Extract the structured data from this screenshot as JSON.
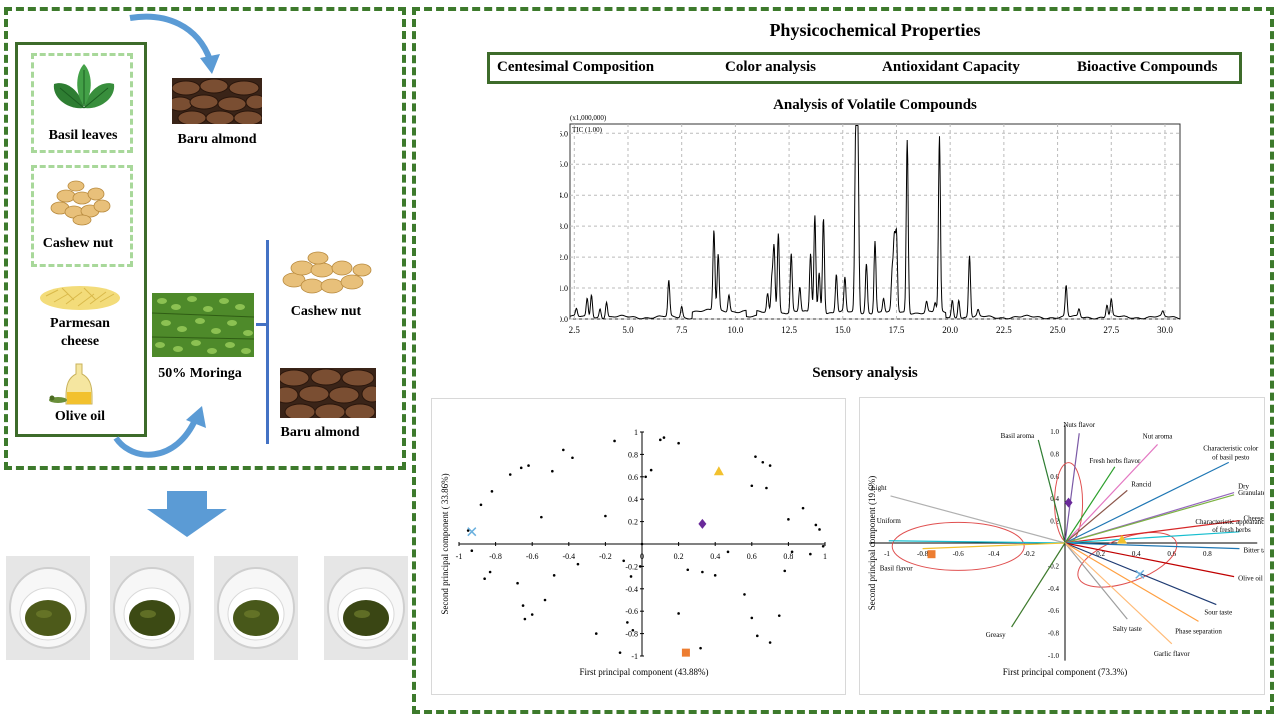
{
  "left": {
    "ingredients": {
      "basil": "Basil leaves",
      "cashew": "Cashew nut",
      "parmesan": "Parmesan cheese",
      "olive": "Olive oil"
    },
    "baru_top": "Baru almond",
    "moringa": "50% Moringa",
    "cashew_right": "Cashew nut",
    "baru_right": "Baru almond"
  },
  "right": {
    "title": "Physicochemical Properties",
    "properties": [
      "Centesimal Composition",
      "Color analysis",
      "Antioxidant Capacity",
      "Bioactive Compounds"
    ],
    "volatile_title": "Analysis of Volatile Compounds",
    "sensory_title": "Sensory analysis"
  },
  "colors": {
    "border_green": "#3d7a2c",
    "light_green": "#a8d89a",
    "arrow_blue": "#5b9bd5"
  },
  "chromatogram": {
    "scale_label": "(x1,000,000)",
    "trace_label": "TIC (1.00)",
    "y_ticks": [
      "0.0",
      "1.0",
      "2.0",
      "3.0",
      "4.0",
      "5.0",
      "6.0"
    ],
    "x_ticks": [
      "2.5",
      "5.0",
      "7.5",
      "10.0",
      "12.5",
      "15.0",
      "17.5",
      "20.0",
      "22.5",
      "25.0",
      "27.5",
      "30.0"
    ]
  },
  "chart_data": [
    {
      "type": "line",
      "title": "",
      "xlabel": "",
      "ylabel": "",
      "xlim": [
        2.3,
        30.7
      ],
      "ylim": [
        0,
        6.3
      ],
      "series": [
        {
          "peaks": [
            [
              2.6,
              0.25
            ],
            [
              3.1,
              0.6
            ],
            [
              3.3,
              0.75
            ],
            [
              3.7,
              0.3
            ],
            [
              4.0,
              0.5
            ],
            [
              6.9,
              1.15
            ],
            [
              7.5,
              0.35
            ],
            [
              9.0,
              2.6
            ],
            [
              9.2,
              1.8
            ],
            [
              9.7,
              0.55
            ],
            [
              11.5,
              0.6
            ],
            [
              11.7,
              1.1
            ],
            [
              11.8,
              2.15
            ],
            [
              12.0,
              2.6
            ],
            [
              12.6,
              1.9
            ],
            [
              13.0,
              0.8
            ],
            [
              13.5,
              1.9
            ],
            [
              13.7,
              3.15
            ],
            [
              13.9,
              1.3
            ],
            [
              14.1,
              3.1
            ],
            [
              14.7,
              1.25
            ],
            [
              15.1,
              1.1
            ],
            [
              15.6,
              5.6
            ],
            [
              15.7,
              5.85
            ],
            [
              16.1,
              1.6
            ],
            [
              16.5,
              2.35
            ],
            [
              16.9,
              0.45
            ],
            [
              17.3,
              1.25
            ],
            [
              17.4,
              2.25
            ],
            [
              17.5,
              2.45
            ],
            [
              18.0,
              5.6
            ],
            [
              18.9,
              0.35
            ],
            [
              19.3,
              0.3
            ],
            [
              19.5,
              5.65
            ],
            [
              20.1,
              0.55
            ],
            [
              20.4,
              0.6
            ],
            [
              20.9,
              2.0
            ],
            [
              21.3,
              0.2
            ],
            [
              25.4,
              1.0
            ],
            [
              26.0,
              0.25
            ],
            [
              27.3,
              0.4
            ],
            [
              27.5,
              0.55
            ],
            [
              29.9,
              0.15
            ]
          ]
        }
      ]
    },
    {
      "type": "scatter",
      "title": "",
      "xlabel": "First principal component  (43.88%)",
      "ylabel": "Second principal component  ( 33.86%)",
      "xlim": [
        -1,
        1
      ],
      "ylim": [
        -1,
        1
      ],
      "ticks": [
        "-1",
        "-0.8",
        "-0.6",
        "-0.4",
        "-0.2",
        "0",
        "0.2",
        "0.4",
        "0.6",
        "0.8",
        "1"
      ],
      "y_ticks": [
        "1",
        "0.8",
        "0.6",
        "0.4",
        "0.2",
        "0",
        "-0.2",
        "-0.4",
        "-0.6",
        "-0.8",
        "-1"
      ],
      "series": [
        {
          "marker": "dot",
          "color": "#000000",
          "points": [
            [
              -0.95,
              0.12
            ],
            [
              -0.88,
              0.35
            ],
            [
              -0.82,
              0.47
            ],
            [
              -0.72,
              0.62
            ],
            [
              -0.66,
              0.68
            ],
            [
              -0.62,
              0.7
            ],
            [
              -0.55,
              0.24
            ],
            [
              -0.49,
              0.65
            ],
            [
              -0.43,
              0.84
            ],
            [
              -0.38,
              0.77
            ],
            [
              -0.2,
              0.25
            ],
            [
              -0.15,
              0.92
            ],
            [
              0.02,
              0.6
            ],
            [
              0.05,
              0.66
            ],
            [
              0.1,
              0.93
            ],
            [
              0.12,
              0.95
            ],
            [
              0.2,
              0.9
            ],
            [
              0.62,
              0.78
            ],
            [
              0.66,
              0.73
            ],
            [
              0.7,
              0.7
            ],
            [
              0.68,
              0.5
            ],
            [
              0.6,
              0.52
            ],
            [
              0.8,
              0.22
            ],
            [
              0.88,
              0.32
            ],
            [
              0.95,
              0.17
            ],
            [
              0.97,
              0.13
            ],
            [
              0.99,
              -0.02
            ],
            [
              0.92,
              -0.09
            ],
            [
              0.82,
              -0.07
            ],
            [
              0.78,
              -0.24
            ],
            [
              0.75,
              -0.64
            ],
            [
              0.7,
              -0.88
            ],
            [
              0.63,
              -0.82
            ],
            [
              0.6,
              -0.66
            ],
            [
              0.56,
              -0.45
            ],
            [
              0.47,
              -0.07
            ],
            [
              0.4,
              -0.28
            ],
            [
              0.33,
              -0.25
            ],
            [
              0.25,
              -0.23
            ],
            [
              0.2,
              -0.62
            ],
            [
              0.32,
              -0.93
            ],
            [
              0.0,
              0.0
            ],
            [
              -0.01,
              -0.2
            ],
            [
              -0.06,
              -0.29
            ],
            [
              -0.1,
              -0.15
            ],
            [
              -0.05,
              -0.77
            ],
            [
              -0.08,
              -0.7
            ],
            [
              -0.12,
              -0.97
            ],
            [
              -0.25,
              -0.8
            ],
            [
              -0.35,
              -0.18
            ],
            [
              -0.48,
              -0.28
            ],
            [
              -0.53,
              -0.5
            ],
            [
              -0.6,
              -0.63
            ],
            [
              -0.64,
              -0.67
            ],
            [
              -0.65,
              -0.55
            ],
            [
              -0.68,
              -0.35
            ],
            [
              -0.83,
              -0.25
            ],
            [
              -0.86,
              -0.31
            ],
            [
              -0.93,
              -0.06
            ]
          ]
        },
        {
          "marker": "triangle",
          "color": "#f2c12e",
          "points": [
            [
              0.42,
              0.65
            ]
          ]
        },
        {
          "marker": "diamond",
          "color": "#6a2a9a",
          "points": [
            [
              0.33,
              0.18
            ]
          ]
        },
        {
          "marker": "square",
          "color": "#ed7d31",
          "points": [
            [
              0.24,
              -0.97
            ]
          ]
        },
        {
          "marker": "x",
          "color": "#6ab0de",
          "points": [
            [
              -0.93,
              0.11
            ]
          ]
        }
      ]
    },
    {
      "type": "scatter",
      "title": "",
      "xlabel": "First principal component (73.3%)",
      "ylabel": "Second principal component (19.6%)",
      "xlim": [
        -1.1,
        1.1
      ],
      "ylim": [
        -1.1,
        1.1
      ],
      "ticks": [
        "-1",
        "-0.8",
        "-0.6",
        "-0.4",
        "-0.2",
        "0",
        "0.2",
        "0.4",
        "0.6",
        "0.8"
      ],
      "y_ticks": [
        "1.0",
        "0.8",
        "0.6",
        "0.4",
        "0.2",
        "0",
        "-0.2",
        "-0.4",
        "-0.6",
        "-0.8",
        "-1.0"
      ],
      "loadings": [
        {
          "name": "Nuts flavor",
          "x": 0.08,
          "y": 0.98,
          "color": "#7b5aa6"
        },
        {
          "name": "Nut aroma",
          "x": 0.52,
          "y": 0.88,
          "color": "#e377c2"
        },
        {
          "name": "Fresh herbs flavor",
          "x": 0.28,
          "y": 0.68,
          "color": "#2ca02c"
        },
        {
          "name": "Basil aroma",
          "x": -0.15,
          "y": 0.92,
          "color": "#2e7d32"
        },
        {
          "name": "Characteristic color of basil pesto",
          "x": 0.92,
          "y": 0.72,
          "color": "#1f77b4"
        },
        {
          "name": "Dry",
          "x": 0.95,
          "y": 0.45,
          "color": "#9467bd"
        },
        {
          "name": "Rancid",
          "x": 0.35,
          "y": 0.47,
          "color": "#8c564b"
        },
        {
          "name": "Granulated",
          "x": 0.95,
          "y": 0.43,
          "color": "#7cb342"
        },
        {
          "name": "Cheese flavor",
          "x": 0.98,
          "y": 0.2,
          "color": "#d62728"
        },
        {
          "name": "Characteristic appearance of fresh herbs",
          "x": 0.98,
          "y": 0.1,
          "color": "#17becf"
        },
        {
          "name": "Bitter taste",
          "x": 0.98,
          "y": -0.05,
          "color": "#1f77b4"
        },
        {
          "name": "Olive oil aroma",
          "x": 0.95,
          "y": -0.3,
          "color": "#c00000"
        },
        {
          "name": "Sour taste",
          "x": 0.85,
          "y": -0.55,
          "color": "#1f3b73"
        },
        {
          "name": "Phase separation",
          "x": 0.75,
          "y": -0.7,
          "color": "#ff9f40"
        },
        {
          "name": "Salty taste",
          "x": 0.35,
          "y": -0.68,
          "color": "#9e9e9e"
        },
        {
          "name": "Garlic flavor",
          "x": 0.6,
          "y": -0.9,
          "color": "#ffbb78"
        },
        {
          "name": "Light",
          "x": -0.98,
          "y": 0.42,
          "color": "#b0b0b0"
        },
        {
          "name": "Uniform",
          "x": -0.99,
          "y": 0.02,
          "color": "#17becf"
        },
        {
          "name": "Basil flavor",
          "x": -0.8,
          "y": -0.05,
          "color": "#f2c12e"
        },
        {
          "name": "Greasy",
          "x": -0.3,
          "y": -0.75,
          "color": "#3d7a2c"
        }
      ],
      "series": [
        {
          "marker": "triangle",
          "color": "#f2c12e",
          "points": [
            [
              0.32,
              0.03
            ]
          ]
        },
        {
          "marker": "diamond",
          "color": "#6a2a9a",
          "points": [
            [
              0.02,
              0.36
            ]
          ]
        },
        {
          "marker": "square",
          "color": "#ed7d31",
          "points": [
            [
              -0.75,
              -0.1
            ]
          ]
        },
        {
          "marker": "x",
          "color": "#6ab0de",
          "points": [
            [
              0.42,
              -0.28
            ]
          ]
        }
      ]
    }
  ]
}
